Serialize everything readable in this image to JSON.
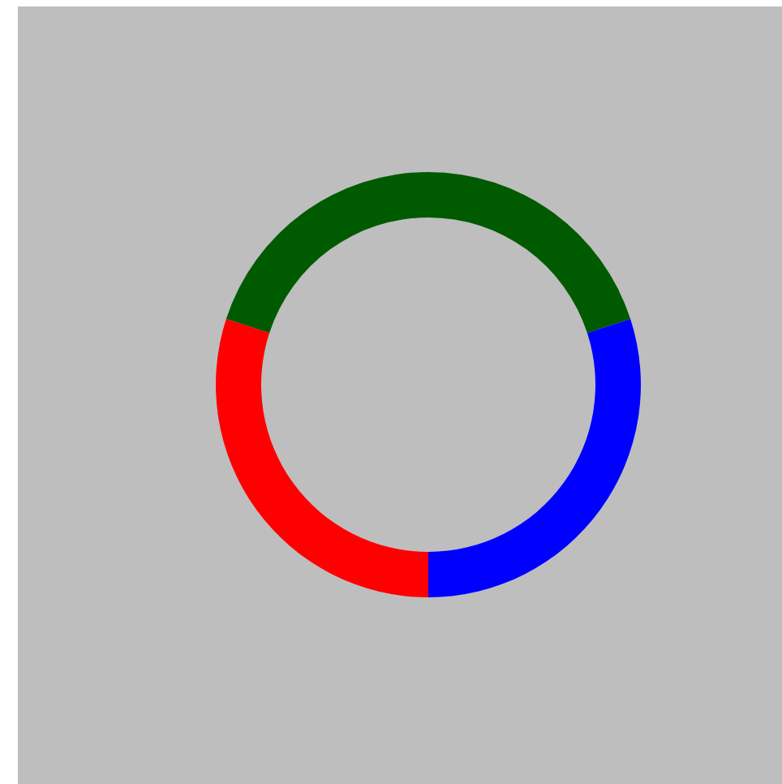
{
  "chart_data": {
    "type": "donut",
    "categories": [
      null,
      null,
      null
    ],
    "values": [
      40,
      30,
      30
    ],
    "colors": [
      "#005a00",
      "#0000ff",
      "#ff0000"
    ]
  }
}
